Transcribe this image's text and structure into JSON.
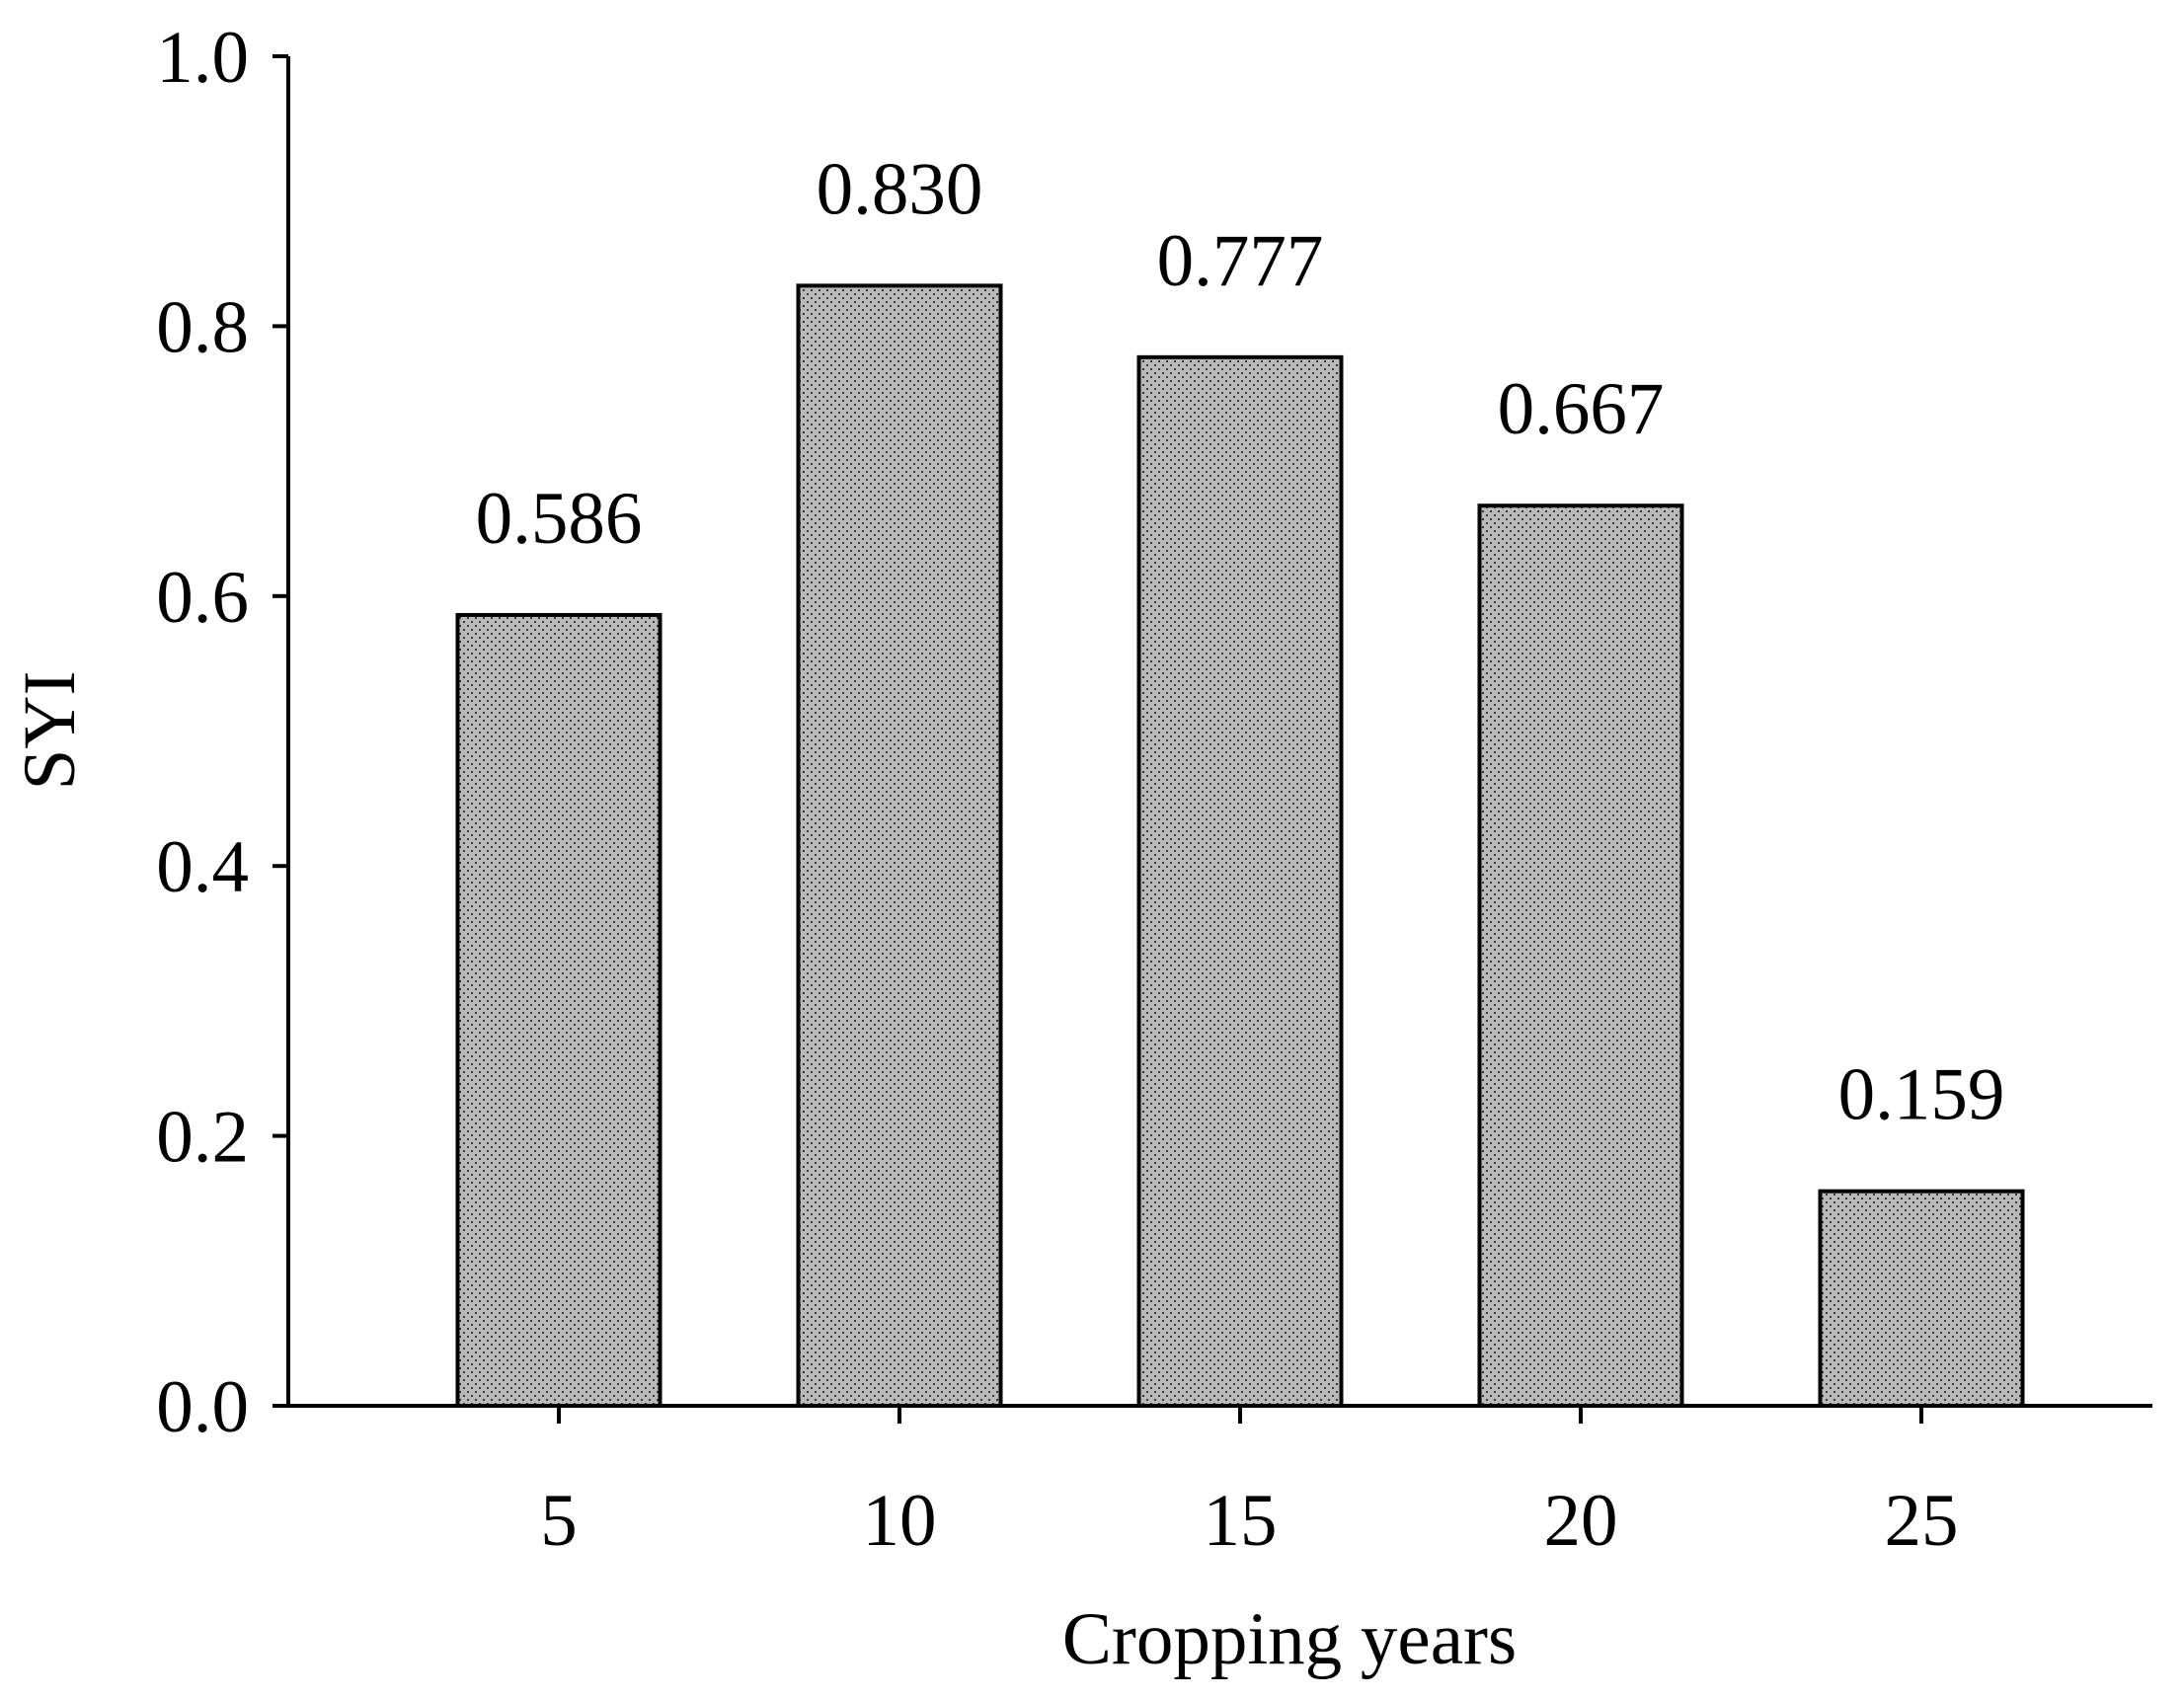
{
  "chart_data": {
    "type": "bar",
    "categories": [
      "5",
      "10",
      "15",
      "20",
      "25"
    ],
    "values": [
      0.586,
      0.83,
      0.777,
      0.667,
      0.159
    ],
    "data_labels": [
      "0.586",
      "0.830",
      "0.777",
      "0.667",
      "0.159"
    ],
    "xlabel": "Cropping years",
    "ylabel": "SYI",
    "ylim": [
      0,
      1.0
    ],
    "yticks": [
      "0.0",
      "0.2",
      "0.4",
      "0.6",
      "0.8",
      "1.0"
    ],
    "ytick_values": [
      0,
      0.2,
      0.4,
      0.6,
      0.8,
      1.0
    ],
    "grid": false,
    "legend": "none",
    "bar_fill": "#b9b9b9",
    "bar_pattern_dot_color": "#3a3a3a",
    "bar_edge_color": "#000000"
  }
}
